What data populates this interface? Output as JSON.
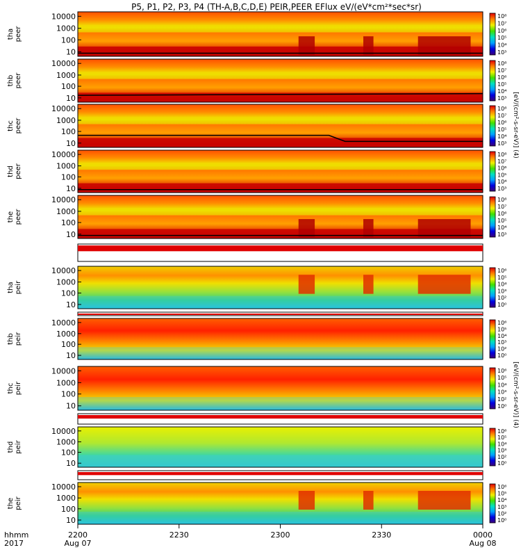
{
  "chart_data": {
    "type": "heatmap",
    "title": "P5, P1, P2, P3, P4 (TH-A,B,C,D,E) PEIR,PEER EFlux eV/(eV*cm²*sec*sr)",
    "x_axis": {
      "corner_label_top": "hhmm",
      "corner_label_bottom": "2017",
      "ticks": [
        {
          "time": "2200",
          "date": "Aug 07"
        },
        {
          "time": "2230",
          "date": ""
        },
        {
          "time": "2300",
          "date": ""
        },
        {
          "time": "2330",
          "date": ""
        },
        {
          "time": "0000",
          "date": "Aug 08"
        }
      ]
    },
    "y_axis_scale": "log",
    "y_ticks": [
      "10000",
      "1000",
      "100",
      "10"
    ],
    "colorbar": {
      "scale": "log",
      "colors": [
        "#3c0078",
        "#0000e0",
        "#00a0ff",
        "#00e0c0",
        "#40e000",
        "#f0f000",
        "#ff8000",
        "#e00000"
      ],
      "label_peer": "[eV/(cm²-s-sr-eV)] (4)",
      "label_peir": "[eV/(cm²-s-sr-eV)] (4)"
    },
    "panels": [
      {
        "probe": "tha",
        "species": "peer",
        "cbar_ticks": [
          "10⁸",
          "10⁷",
          "10⁶",
          "10⁵",
          "10⁴",
          "10³"
        ]
      },
      {
        "probe": "thb",
        "species": "peer",
        "cbar_ticks": [
          "10⁸",
          "10⁷",
          "10⁶",
          "10⁵",
          "10⁴",
          "10³"
        ]
      },
      {
        "probe": "thc",
        "species": "peer",
        "cbar_ticks": [
          "10⁸",
          "10⁷",
          "10⁶",
          "10⁵",
          "10⁴",
          "10³"
        ]
      },
      {
        "probe": "thd",
        "species": "peer",
        "cbar_ticks": [
          "10⁸",
          "10⁷",
          "10⁶",
          "10⁵",
          "10⁴",
          "10³"
        ]
      },
      {
        "probe": "the",
        "species": "peer",
        "cbar_ticks": [
          "10⁸",
          "10⁷",
          "10⁶",
          "10⁵",
          "10⁴",
          "10³"
        ]
      },
      {
        "probe": "tha",
        "species": "peir",
        "cbar_ticks": [
          "10⁶",
          "10⁵",
          "10⁴",
          "10³",
          "10²",
          "10⁰"
        ]
      },
      {
        "probe": "thb",
        "species": "peir",
        "cbar_ticks": [
          "10⁶",
          "10⁵",
          "10⁴",
          "10³",
          "10²",
          "10⁰"
        ]
      },
      {
        "probe": "thc",
        "species": "peir",
        "cbar_ticks": [
          "10⁶",
          "10⁵",
          "10⁴",
          "10³",
          "10²",
          "10⁰"
        ]
      },
      {
        "probe": "thd",
        "species": "peir",
        "cbar_ticks": [
          "10⁶",
          "10⁵",
          "10⁴",
          "10³",
          "10²",
          "10⁰"
        ]
      },
      {
        "probe": "the",
        "species": "peir",
        "cbar_ticks": [
          "10⁶",
          "10⁵",
          "10⁴",
          "10³",
          "10²",
          "10⁰"
        ]
      }
    ],
    "grid": false,
    "legend": "colorbar at right of each panel"
  }
}
